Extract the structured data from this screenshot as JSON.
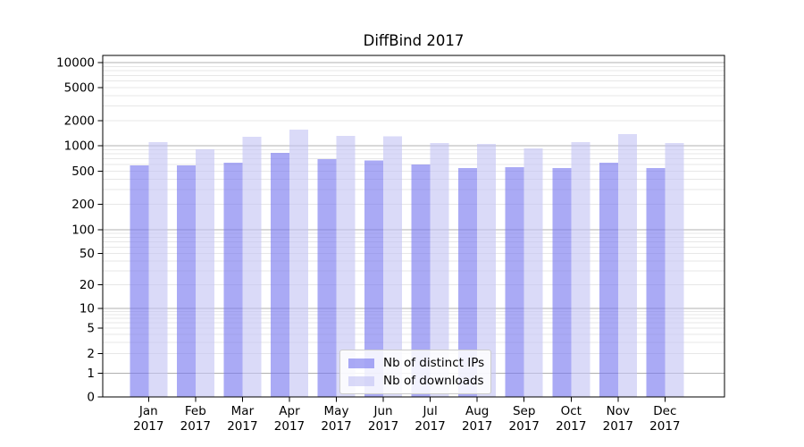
{
  "chart_data": {
    "type": "bar",
    "title": "DiffBind 2017",
    "months": [
      "Jan",
      "Feb",
      "Mar",
      "Apr",
      "May",
      "Jun",
      "Jul",
      "Aug",
      "Sep",
      "Oct",
      "Nov",
      "Dec"
    ],
    "year": "2017",
    "series": [
      {
        "name": "Nb of distinct IPs",
        "color": "#7676ef",
        "values": [
          580,
          580,
          630,
          820,
          690,
          670,
          600,
          540,
          555,
          540,
          630,
          540
        ]
      },
      {
        "name": "Nb of downloads",
        "color": "#c3c3f4",
        "values": [
          1100,
          910,
          1280,
          1560,
          1320,
          1290,
          1080,
          1050,
          930,
          1100,
          1380,
          1080
        ]
      }
    ],
    "y_ticks": [
      0,
      1,
      2,
      5,
      10,
      20,
      50,
      100,
      200,
      500,
      1000,
      2000,
      5000,
      10000
    ],
    "y_scale": "symlog",
    "ylim": [
      0,
      12000
    ],
    "grid": "horizontal log minor + decade major",
    "legend_position": "lower center"
  },
  "colors": {
    "background": "#ffffff",
    "axis": "#000000",
    "major_grid": "#b0b0b0",
    "minor_grid": "#e7e7e7",
    "text": "#000000"
  }
}
